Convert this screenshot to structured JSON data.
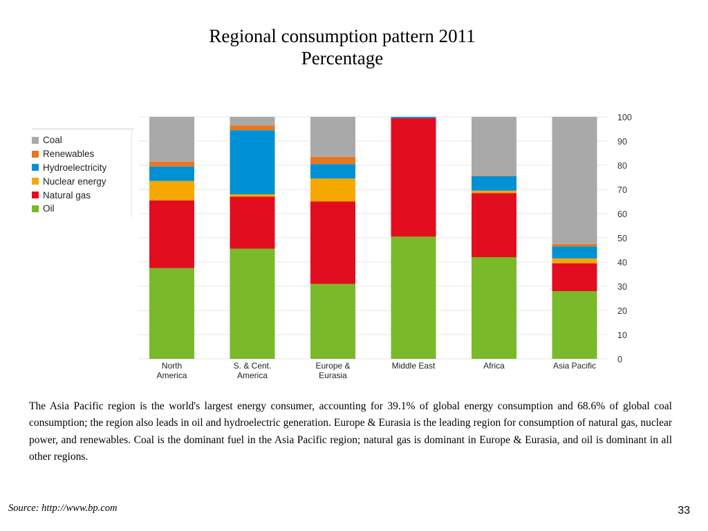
{
  "slide": {
    "title_line1": "Regional consumption pattern 2011",
    "title_line2": "Percentage",
    "body": "The Asia Pacific region is the world's largest energy consumer, accounting for 39.1% of global energy consumption and 68.6% of global coal consumption; the region also leads in oil and hydroelectric generation. Europe & Eurasia is the leading region for consumption of natural gas, nuclear power, and renewables. Coal is the dominant fuel in the Asia Pacific region; natural gas is dominant in Europe & Eurasia, and oil is dominant in all other regions.",
    "source": "Source: http://www.bp.com",
    "page_number": "33"
  },
  "chart_data": {
    "type": "bar",
    "stacked": true,
    "categories": [
      [
        "North",
        "America"
      ],
      [
        "S. & Cent.",
        "America"
      ],
      [
        "Europe &",
        "Eurasia"
      ],
      [
        "Middle East"
      ],
      [
        "Africa"
      ],
      [
        "Asia Pacific"
      ]
    ],
    "series": [
      {
        "name": "Oil",
        "color": "#7ab929",
        "values": [
          37.5,
          45.5,
          31,
          50.5,
          42,
          28
        ]
      },
      {
        "name": "Natural gas",
        "color": "#e30d20",
        "values": [
          28,
          21.5,
          34,
          49,
          26.5,
          11.5
        ]
      },
      {
        "name": "Nuclear energy",
        "color": "#f6a700",
        "values": [
          8,
          1,
          9.5,
          0,
          1,
          2
        ]
      },
      {
        "name": "Hydroelectricity",
        "color": "#0091d5",
        "values": [
          6,
          26.5,
          6,
          0.5,
          6,
          5
        ]
      },
      {
        "name": "Renewables",
        "color": "#e87722",
        "values": [
          2,
          2,
          3,
          0,
          0.3,
          1
        ]
      },
      {
        "name": "Coal",
        "color": "#a9a9a9",
        "values": [
          18.5,
          3.5,
          16.5,
          0,
          24.2,
          52.5
        ]
      }
    ],
    "legend_order": [
      "Coal",
      "Renewables",
      "Hydroelectricity",
      "Nuclear energy",
      "Natural gas",
      "Oil"
    ],
    "ylim": [
      0,
      100
    ],
    "yticks": [
      0,
      10,
      20,
      30,
      40,
      50,
      60,
      70,
      80,
      90,
      100
    ],
    "y_axis_side": "right",
    "legend_position": "left",
    "grid": true
  }
}
